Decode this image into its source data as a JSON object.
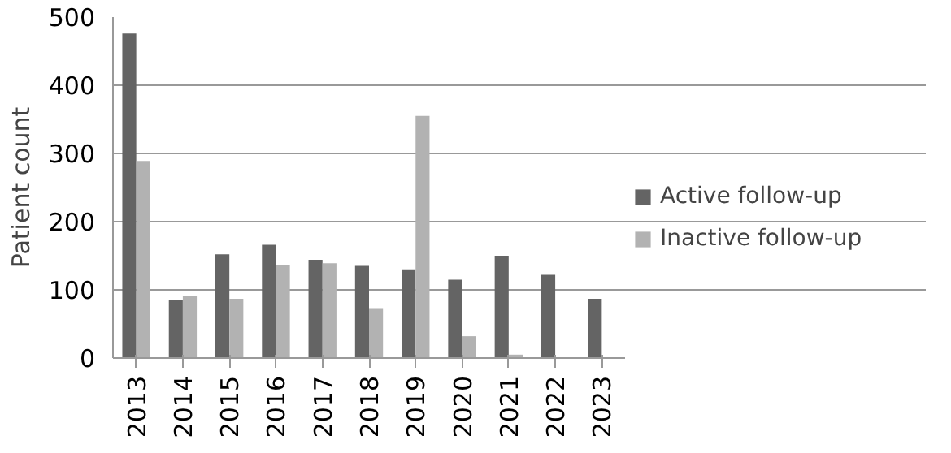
{
  "chart_data": {
    "type": "bar",
    "ylabel": "Patient count",
    "categories": [
      "2013",
      "2014",
      "2015",
      "2016",
      "2017",
      "2018",
      "2019",
      "2020",
      "2021",
      "2022",
      "2023"
    ],
    "series": [
      {
        "name": "Active follow-up",
        "color": "#646464",
        "values": [
          476,
          85,
          152,
          166,
          144,
          135,
          130,
          115,
          150,
          122,
          87
        ]
      },
      {
        "name": "Inactive follow-up",
        "color": "#b2b2b2",
        "values": [
          289,
          91,
          87,
          136,
          139,
          72,
          355,
          32,
          5,
          0,
          0
        ]
      }
    ],
    "ylim": [
      0,
      500
    ],
    "yticks": [
      0,
      100,
      200,
      300,
      400,
      500
    ],
    "grid": "y",
    "legend": "right"
  }
}
